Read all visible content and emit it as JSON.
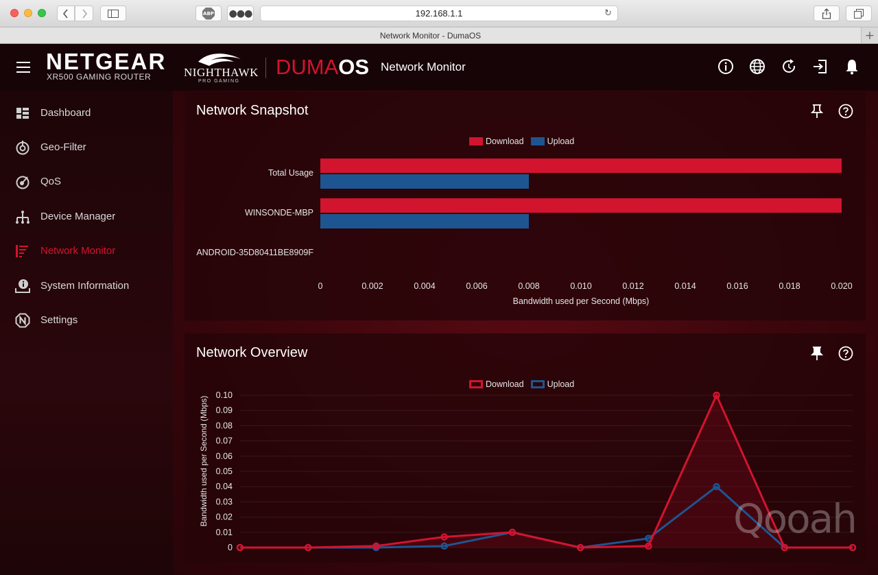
{
  "browser": {
    "url": "192.168.1.1",
    "tab_title": "Network Monitor - DumaOS",
    "abp_label": "ABP"
  },
  "header": {
    "brand": "NETGEAR",
    "brand_sub": "XR500 GAMING ROUTER",
    "nighthawk": "NIGHTHAWK",
    "nighthawk_sub": "PRO GAMING",
    "duma": "DUMA",
    "os": "OS",
    "page_title": "Network Monitor",
    "icons": [
      "info-icon",
      "globe-icon",
      "refresh-icon",
      "logout-icon",
      "bell-icon"
    ]
  },
  "sidebar": {
    "items": [
      {
        "label": "Dashboard",
        "icon": "dashboard-icon"
      },
      {
        "label": "Geo-Filter",
        "icon": "geo-filter-icon"
      },
      {
        "label": "QoS",
        "icon": "qos-icon"
      },
      {
        "label": "Device Manager",
        "icon": "device-manager-icon"
      },
      {
        "label": "Network Monitor",
        "icon": "network-monitor-icon",
        "active": true
      },
      {
        "label": "System Information",
        "icon": "system-info-icon"
      },
      {
        "label": "Settings",
        "icon": "settings-icon"
      }
    ]
  },
  "colors": {
    "download": "#d2142f",
    "upload": "#1d5591",
    "accent": "#d2142f"
  },
  "snapshot": {
    "title": "Network Snapshot",
    "legend": {
      "download": "Download",
      "upload": "Upload"
    }
  },
  "overview": {
    "title": "Network Overview",
    "legend": {
      "download": "Download",
      "upload": "Upload"
    }
  },
  "watermark": "Qooah",
  "chart_data": [
    {
      "type": "bar",
      "orientation": "horizontal",
      "categories": [
        "Total Usage",
        "WINSONDE-MBP",
        "ANDROID-35D80411BE8909F"
      ],
      "series": [
        {
          "name": "Download",
          "values": [
            0.02,
            0.02,
            0
          ]
        },
        {
          "name": "Upload",
          "values": [
            0.008,
            0.008,
            0
          ]
        }
      ],
      "xlabel": "Bandwidth used per Second (Mbps)",
      "xlim": [
        0,
        0.02
      ],
      "xticks": [
        "0",
        "0.002",
        "0.004",
        "0.006",
        "0.008",
        "0.010",
        "0.012",
        "0.014",
        "0.016",
        "0.018",
        "0.020"
      ],
      "legend": "top-center"
    },
    {
      "type": "line",
      "x": [
        0,
        1,
        2,
        3,
        4,
        5,
        6,
        7,
        8,
        9
      ],
      "series": [
        {
          "name": "Download",
          "values": [
            0,
            0,
            0.001,
            0.007,
            0.01,
            0,
            0.001,
            0.1,
            0,
            0
          ]
        },
        {
          "name": "Upload",
          "values": [
            0,
            0,
            0,
            0.001,
            0.01,
            0,
            0.006,
            0.04,
            0,
            0
          ]
        }
      ],
      "ylabel": "Bandwidth used per Second (Mbps)",
      "ylim": [
        0,
        0.1
      ],
      "yticks": [
        "0",
        "0.01",
        "0.02",
        "0.03",
        "0.04",
        "0.05",
        "0.06",
        "0.07",
        "0.08",
        "0.09",
        "0.10"
      ],
      "legend": "top-center",
      "grid": true
    }
  ]
}
